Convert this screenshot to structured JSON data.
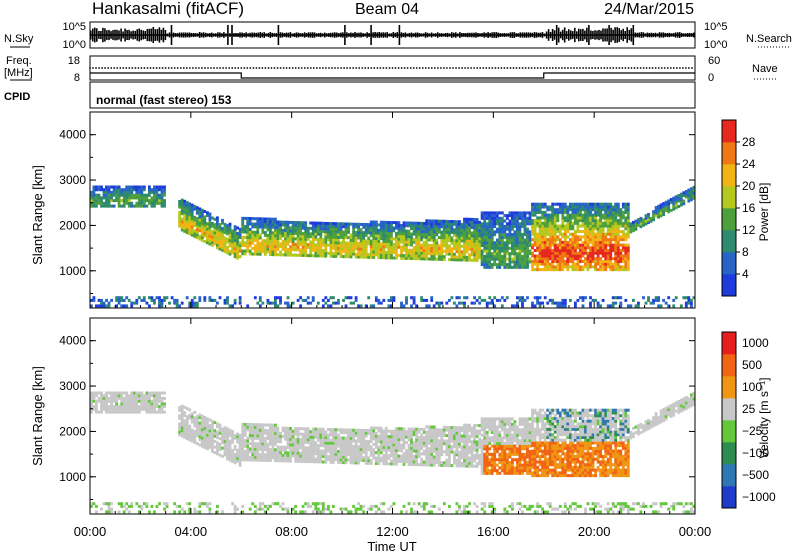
{
  "header": {
    "station": "Hankasalmi (fitACF)",
    "beam": "Beam 04",
    "date": "24/Mar/2015"
  },
  "strips": {
    "nsky_label": "N.Sky",
    "nsearch_label": "N.Search",
    "freq_label_1": "Freq.",
    "freq_label_2": "[MHz]",
    "nave_label": "Nave",
    "cpid_label": "CPID",
    "cpid_value": "normal (fast stereo) 153",
    "noise_ticks_left": [
      "10^5",
      "10^0"
    ],
    "noise_ticks_right": [
      "10^5",
      "10^0"
    ],
    "freq_ticks_left": [
      "18",
      "8"
    ],
    "nave_ticks_right": [
      "60",
      "0"
    ]
  },
  "chart_data": [
    {
      "type": "heatmap",
      "title": "",
      "ylabel": "Slant Range [km]",
      "xlabel": "",
      "x_unit": "hours UT",
      "xlim": [
        0,
        24
      ],
      "ylim": [
        180,
        4500
      ],
      "yticks": [
        "1000",
        "2000",
        "3000",
        "4000"
      ],
      "colorbar": {
        "label": "Power [dB]",
        "ticks": [
          "4",
          "8",
          "12",
          "16",
          "20",
          "24",
          "28"
        ],
        "colors": [
          "#1e3cdc",
          "#2864c8",
          "#2e8a6e",
          "#4ea03c",
          "#b4c81e",
          "#f0b414",
          "#f07814",
          "#e6281e"
        ]
      },
      "features": [
        {
          "description": "band",
          "x0": 0.0,
          "x1": 3.0,
          "r_top": 2850,
          "r_bot": 2400,
          "level": 3
        },
        {
          "description": "band",
          "x0": 3.5,
          "x1": 6.0,
          "r_top": 2600,
          "r_bot": 1200,
          "level": 5
        },
        {
          "description": "band",
          "x0": 6.0,
          "x1": 15.5,
          "r_top": 2200,
          "r_bot": 1150,
          "level": 5
        },
        {
          "description": "band",
          "x0": 15.5,
          "x1": 17.5,
          "r_top": 2300,
          "r_bot": 1050,
          "level": 3
        },
        {
          "description": "band",
          "x0": 17.5,
          "x1": 21.3,
          "r_top": 2500,
          "r_bot": 1000,
          "level": 7
        },
        {
          "description": "band",
          "x0": 21.3,
          "x1": 24.0,
          "r_top": 2900,
          "r_bot": 1800,
          "level": 3
        }
      ]
    },
    {
      "type": "heatmap",
      "title": "",
      "ylabel": "Slant Range [km]",
      "xlabel": "Time UT",
      "x_unit": "hours UT",
      "xlim": [
        0,
        24
      ],
      "ylim": [
        180,
        4500
      ],
      "yticks": [
        "1000",
        "2000",
        "3000",
        "4000"
      ],
      "xticks": [
        "00:00",
        "04:00",
        "08:00",
        "12:00",
        "16:00",
        "20:00",
        "00:00"
      ],
      "colorbar": {
        "label": "Velocity [m s⁻¹]",
        "ticks": [
          "1000",
          "500",
          "100",
          "25",
          "−25",
          "−100",
          "−500",
          "−1000"
        ],
        "colors": [
          "#1e3cc8",
          "#2e78b4",
          "#2e8c50",
          "#64c83c",
          "#c8c8c8",
          "#f09614",
          "#f06414",
          "#e61e1e"
        ]
      }
    }
  ]
}
